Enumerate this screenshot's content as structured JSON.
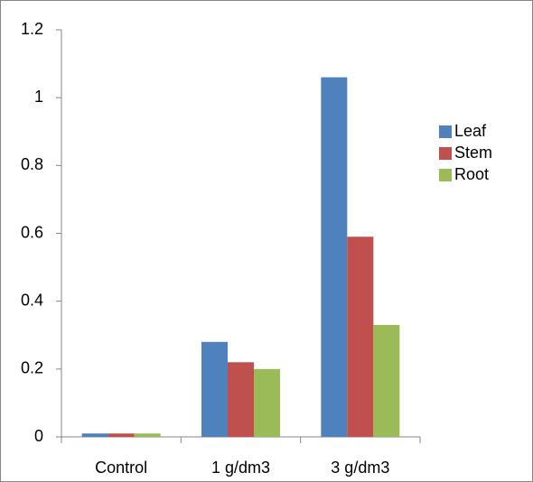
{
  "chart_data": {
    "type": "bar",
    "categories": [
      "Control",
      "1 g/dm3",
      "3 g/dm3"
    ],
    "series": [
      {
        "name": "Leaf",
        "color": "#4f81bd",
        "values": [
          0.01,
          0.28,
          1.06
        ]
      },
      {
        "name": "Stem",
        "color": "#c0504d",
        "values": [
          0.01,
          0.22,
          0.59
        ]
      },
      {
        "name": "Root",
        "color": "#9bbb59",
        "values": [
          0.01,
          0.2,
          0.33
        ]
      }
    ],
    "ylim": [
      0,
      1.2
    ],
    "yticks": [
      0,
      0.2,
      0.4,
      0.6,
      0.8,
      1,
      1.2
    ],
    "grid": false,
    "legend": "right"
  }
}
